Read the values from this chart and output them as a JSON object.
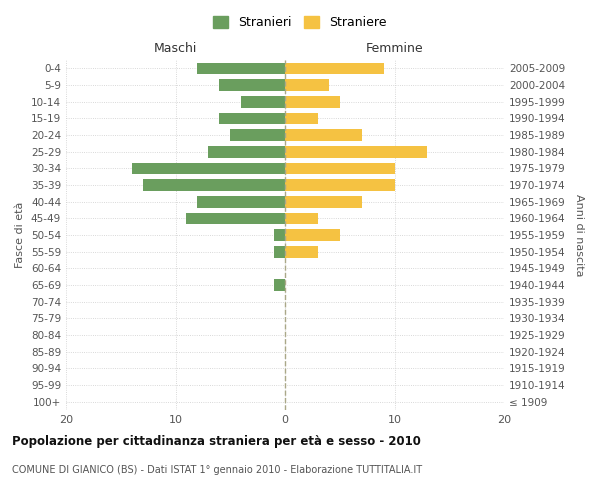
{
  "age_groups": [
    "100+",
    "95-99",
    "90-94",
    "85-89",
    "80-84",
    "75-79",
    "70-74",
    "65-69",
    "60-64",
    "55-59",
    "50-54",
    "45-49",
    "40-44",
    "35-39",
    "30-34",
    "25-29",
    "20-24",
    "15-19",
    "10-14",
    "5-9",
    "0-4"
  ],
  "birth_years": [
    "≤ 1909",
    "1910-1914",
    "1915-1919",
    "1920-1924",
    "1925-1929",
    "1930-1934",
    "1935-1939",
    "1940-1944",
    "1945-1949",
    "1950-1954",
    "1955-1959",
    "1960-1964",
    "1965-1969",
    "1970-1974",
    "1975-1979",
    "1980-1984",
    "1985-1989",
    "1990-1994",
    "1995-1999",
    "2000-2004",
    "2005-2009"
  ],
  "maschi": [
    0,
    0,
    0,
    0,
    0,
    0,
    0,
    1,
    0,
    1,
    1,
    9,
    8,
    13,
    14,
    7,
    5,
    6,
    4,
    6,
    8
  ],
  "femmine": [
    0,
    0,
    0,
    0,
    0,
    0,
    0,
    0,
    0,
    3,
    5,
    3,
    7,
    10,
    10,
    13,
    7,
    3,
    5,
    4,
    9
  ],
  "color_maschi": "#6a9e5e",
  "color_femmine": "#f5c242",
  "title_main": "Popolazione per cittadinanza straniera per età e sesso - 2010",
  "title_sub": "COMUNE DI GIANICO (BS) - Dati ISTAT 1° gennaio 2010 - Elaborazione TUTTITALIA.IT",
  "legend_maschi": "Stranieri",
  "legend_femmine": "Straniere",
  "xlabel_left": "Maschi",
  "xlabel_right": "Femmine",
  "ylabel_left": "Fasce di età",
  "ylabel_right": "Anni di nascita",
  "xlim": 20,
  "background_color": "#ffffff",
  "grid_color": "#cccccc"
}
